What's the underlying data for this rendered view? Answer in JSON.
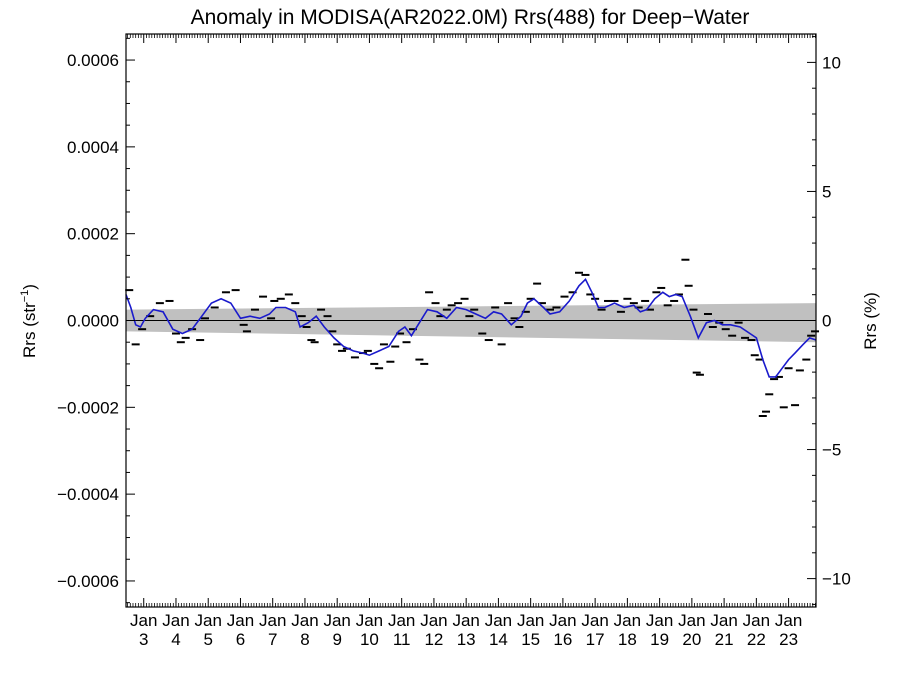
{
  "chart_data": {
    "type": "line",
    "title": "Anomaly in MODISA(AR2022.0M) Rrs(488) for Deep−Water",
    "ylabel_main": "Rrs (str",
    "ylabel_sup": "−1",
    "ylabel_close": ")",
    "ylabel_right": "Rrs (%)",
    "ylim": [
      -0.00066,
      0.00066
    ],
    "ylim_right": [
      -11.1,
      11.1
    ],
    "xlim": [
      2002.45,
      2023.85
    ],
    "yticks": [
      {
        "value": 0.0006,
        "label": "0.0006"
      },
      {
        "value": 0.0004,
        "label": "0.0004"
      },
      {
        "value": 0.0002,
        "label": "0.0002"
      },
      {
        "value": 0.0,
        "label": "0.0000"
      },
      {
        "value": -0.0002,
        "label": "−0.0002"
      },
      {
        "value": -0.0004,
        "label": "−0.0004"
      },
      {
        "value": -0.0006,
        "label": "−0.0006"
      }
    ],
    "yticks_right": [
      {
        "value": 10,
        "label": "10"
      },
      {
        "value": 5,
        "label": "5"
      },
      {
        "value": 0,
        "label": "0"
      },
      {
        "value": -5,
        "label": "−5"
      },
      {
        "value": -10,
        "label": "−10"
      }
    ],
    "xticks": [
      {
        "value": 2003,
        "month": "Jan",
        "year": "3"
      },
      {
        "value": 2004,
        "month": "Jan",
        "year": "4"
      },
      {
        "value": 2005,
        "month": "Jan",
        "year": "5"
      },
      {
        "value": 2006,
        "month": "Jan",
        "year": "6"
      },
      {
        "value": 2007,
        "month": "Jan",
        "year": "7"
      },
      {
        "value": 2008,
        "month": "Jan",
        "year": "8"
      },
      {
        "value": 2009,
        "month": "Jan",
        "year": "9"
      },
      {
        "value": 2010,
        "month": "Jan",
        "year": "10"
      },
      {
        "value": 2011,
        "month": "Jan",
        "year": "11"
      },
      {
        "value": 2012,
        "month": "Jan",
        "year": "12"
      },
      {
        "value": 2013,
        "month": "Jan",
        "year": "13"
      },
      {
        "value": 2014,
        "month": "Jan",
        "year": "14"
      },
      {
        "value": 2015,
        "month": "Jan",
        "year": "15"
      },
      {
        "value": 2016,
        "month": "Jan",
        "year": "16"
      },
      {
        "value": 2017,
        "month": "Jan",
        "year": "17"
      },
      {
        "value": 2018,
        "month": "Jan",
        "year": "18"
      },
      {
        "value": 2019,
        "month": "Jan",
        "year": "19"
      },
      {
        "value": 2020,
        "month": "Jan",
        "year": "20"
      },
      {
        "value": 2021,
        "month": "Jan",
        "year": "21"
      },
      {
        "value": 2022,
        "month": "Jan",
        "year": "22"
      },
      {
        "value": 2023,
        "month": "Jan",
        "year": "23"
      }
    ],
    "band": {
      "color": "#c0c0c0",
      "upper": [
        [
          2002.45,
          2.5e-05
        ],
        [
          2023.85,
          4e-05
        ]
      ],
      "lower": [
        [
          2002.45,
          -2.5e-05
        ],
        [
          2023.85,
          -5e-05
        ]
      ]
    },
    "smooth_line": {
      "color": "#1a1acc",
      "points": [
        [
          2002.45,
          6e-05
        ],
        [
          2002.6,
          3e-05
        ],
        [
          2002.75,
          -1e-05
        ],
        [
          2002.9,
          -1.5e-05
        ],
        [
          2003.05,
          5e-06
        ],
        [
          2003.3,
          2.5e-05
        ],
        [
          2003.6,
          2e-05
        ],
        [
          2003.9,
          -2e-05
        ],
        [
          2004.2,
          -3e-05
        ],
        [
          2004.5,
          -2e-05
        ],
        [
          2004.8,
          1e-05
        ],
        [
          2005.1,
          4e-05
        ],
        [
          2005.4,
          5e-05
        ],
        [
          2005.7,
          4e-05
        ],
        [
          2006.0,
          5e-06
        ],
        [
          2006.3,
          1e-05
        ],
        [
          2006.6,
          5e-06
        ],
        [
          2006.9,
          1.5e-05
        ],
        [
          2007.1,
          3e-05
        ],
        [
          2007.4,
          3e-05
        ],
        [
          2007.7,
          2e-05
        ],
        [
          2007.85,
          -1.5e-05
        ],
        [
          2008.1,
          -5e-06
        ],
        [
          2008.35,
          1e-05
        ],
        [
          2008.6,
          -1.5e-05
        ],
        [
          2008.9,
          -4e-05
        ],
        [
          2009.2,
          -6e-05
        ],
        [
          2009.5,
          -7e-05
        ],
        [
          2009.8,
          -7.5e-05
        ],
        [
          2010.0,
          -8e-05
        ],
        [
          2010.3,
          -7e-05
        ],
        [
          2010.6,
          -6e-05
        ],
        [
          2010.9,
          -2.5e-05
        ],
        [
          2011.1,
          -1.5e-05
        ],
        [
          2011.3,
          -3.5e-05
        ],
        [
          2011.55,
          -5e-06
        ],
        [
          2011.8,
          2.5e-05
        ],
        [
          2012.1,
          2e-05
        ],
        [
          2012.4,
          5e-06
        ],
        [
          2012.7,
          3e-05
        ],
        [
          2013.0,
          2.5e-05
        ],
        [
          2013.3,
          1.5e-05
        ],
        [
          2013.6,
          5e-06
        ],
        [
          2013.85,
          2e-05
        ],
        [
          2014.1,
          1.5e-05
        ],
        [
          2014.4,
          -1e-05
        ],
        [
          2014.7,
          1e-05
        ],
        [
          2014.9,
          4e-05
        ],
        [
          2015.1,
          5e-05
        ],
        [
          2015.4,
          3e-05
        ],
        [
          2015.6,
          1.5e-05
        ],
        [
          2015.9,
          2e-05
        ],
        [
          2016.2,
          4.5e-05
        ],
        [
          2016.5,
          8e-05
        ],
        [
          2016.7,
          9.5e-05
        ],
        [
          2016.9,
          6.5e-05
        ],
        [
          2017.1,
          3e-05
        ],
        [
          2017.3,
          3e-05
        ],
        [
          2017.6,
          4e-05
        ],
        [
          2017.9,
          3e-05
        ],
        [
          2018.2,
          3.5e-05
        ],
        [
          2018.4,
          2e-05
        ],
        [
          2018.6,
          2.5e-05
        ],
        [
          2018.85,
          5e-05
        ],
        [
          2019.1,
          6.5e-05
        ],
        [
          2019.3,
          5.5e-05
        ],
        [
          2019.5,
          6e-05
        ],
        [
          2019.7,
          5.5e-05
        ],
        [
          2019.95,
          1e-05
        ],
        [
          2020.2,
          -4e-05
        ],
        [
          2020.45,
          -5e-06
        ],
        [
          2020.7,
          0.0
        ],
        [
          2020.95,
          -1e-05
        ],
        [
          2021.2,
          -1e-05
        ],
        [
          2021.5,
          -1.5e-05
        ],
        [
          2021.8,
          -3e-05
        ],
        [
          2022.0,
          -4e-05
        ],
        [
          2022.2,
          -9e-05
        ],
        [
          2022.4,
          -0.00013
        ],
        [
          2022.6,
          -0.00013
        ],
        [
          2022.8,
          -0.00011
        ],
        [
          2023.0,
          -9e-05
        ],
        [
          2023.2,
          -7.5e-05
        ],
        [
          2023.45,
          -5.5e-05
        ],
        [
          2023.65,
          -4e-05
        ],
        [
          2023.85,
          -4.5e-05
        ]
      ]
    },
    "scatter_dashes": [
      [
        2002.55,
        7e-05
      ],
      [
        2002.75,
        -5.5e-05
      ],
      [
        2002.95,
        -2e-05
      ],
      [
        2003.2,
        1e-05
      ],
      [
        2003.5,
        4e-05
      ],
      [
        2003.8,
        4.5e-05
      ],
      [
        2004.0,
        -3e-05
      ],
      [
        2004.15,
        -5e-05
      ],
      [
        2004.3,
        -4e-05
      ],
      [
        2004.5,
        -2e-05
      ],
      [
        2004.75,
        -4.5e-05
      ],
      [
        2004.9,
        5e-06
      ],
      [
        2005.2,
        3e-05
      ],
      [
        2005.55,
        6.5e-05
      ],
      [
        2005.85,
        7e-05
      ],
      [
        2006.1,
        -1e-05
      ],
      [
        2006.2,
        -2.5e-05
      ],
      [
        2006.45,
        2.5e-05
      ],
      [
        2006.7,
        5.5e-05
      ],
      [
        2006.95,
        5e-06
      ],
      [
        2007.05,
        4.5e-05
      ],
      [
        2007.25,
        5e-05
      ],
      [
        2007.5,
        6e-05
      ],
      [
        2007.7,
        4e-05
      ],
      [
        2007.9,
        1e-05
      ],
      [
        2008.05,
        -1.5e-05
      ],
      [
        2008.2,
        -4.5e-05
      ],
      [
        2008.3,
        -5e-05
      ],
      [
        2008.5,
        2.5e-05
      ],
      [
        2008.7,
        1e-05
      ],
      [
        2008.85,
        -2.5e-05
      ],
      [
        2009.0,
        -5.5e-05
      ],
      [
        2009.15,
        -7e-05
      ],
      [
        2009.3,
        -6.5e-05
      ],
      [
        2009.55,
        -8.5e-05
      ],
      [
        2009.8,
        -7.5e-05
      ],
      [
        2009.95,
        -7e-05
      ],
      [
        2010.15,
        -0.0001
      ],
      [
        2010.3,
        -0.00011
      ],
      [
        2010.45,
        -5.5e-05
      ],
      [
        2010.65,
        -9.5e-05
      ],
      [
        2010.8,
        -6e-05
      ],
      [
        2010.95,
        -3e-05
      ],
      [
        2011.15,
        -5e-05
      ],
      [
        2011.35,
        -2e-05
      ],
      [
        2011.55,
        -9e-05
      ],
      [
        2011.7,
        -0.0001
      ],
      [
        2011.85,
        6.5e-05
      ],
      [
        2012.05,
        4e-05
      ],
      [
        2012.2,
        1e-05
      ],
      [
        2012.4,
        2.5e-05
      ],
      [
        2012.55,
        3.5e-05
      ],
      [
        2012.75,
        4e-05
      ],
      [
        2012.95,
        5e-05
      ],
      [
        2013.1,
        1e-05
      ],
      [
        2013.25,
        2.5e-05
      ],
      [
        2013.5,
        -3e-05
      ],
      [
        2013.7,
        -4.5e-05
      ],
      [
        2013.9,
        3e-05
      ],
      [
        2014.1,
        -5.5e-05
      ],
      [
        2014.3,
        4e-05
      ],
      [
        2014.5,
        5e-06
      ],
      [
        2014.65,
        -1.5e-05
      ],
      [
        2014.85,
        2e-05
      ],
      [
        2015.0,
        5e-05
      ],
      [
        2015.2,
        8.5e-05
      ],
      [
        2015.35,
        4e-05
      ],
      [
        2015.6,
        2.5e-05
      ],
      [
        2015.8,
        3e-05
      ],
      [
        2016.05,
        5.5e-05
      ],
      [
        2016.3,
        6.5e-05
      ],
      [
        2016.5,
        0.00011
      ],
      [
        2016.7,
        0.000105
      ],
      [
        2016.85,
        6e-05
      ],
      [
        2017.0,
        5e-05
      ],
      [
        2017.2,
        2.5e-05
      ],
      [
        2017.4,
        4.5e-05
      ],
      [
        2017.6,
        4.5e-05
      ],
      [
        2017.8,
        2e-05
      ],
      [
        2018.0,
        5e-05
      ],
      [
        2018.2,
        4e-05
      ],
      [
        2018.35,
        3e-05
      ],
      [
        2018.55,
        4.5e-05
      ],
      [
        2018.7,
        2.5e-05
      ],
      [
        2018.9,
        6.5e-05
      ],
      [
        2019.05,
        7.5e-05
      ],
      [
        2019.25,
        3.5e-05
      ],
      [
        2019.45,
        4.5e-05
      ],
      [
        2019.6,
        6e-05
      ],
      [
        2019.8,
        0.00014
      ],
      [
        2019.9,
        8e-05
      ],
      [
        2020.05,
        2.5e-05
      ],
      [
        2020.15,
        -0.00012
      ],
      [
        2020.25,
        -0.000125
      ],
      [
        2020.5,
        1.5e-05
      ],
      [
        2020.65,
        -1.5e-05
      ],
      [
        2020.85,
        -5e-06
      ],
      [
        2021.05,
        -2e-05
      ],
      [
        2021.25,
        -3.5e-05
      ],
      [
        2021.45,
        -5e-06
      ],
      [
        2021.65,
        -4e-05
      ],
      [
        2021.85,
        -4.5e-05
      ],
      [
        2021.95,
        -8e-05
      ],
      [
        2022.1,
        -9e-05
      ],
      [
        2022.2,
        -0.00022
      ],
      [
        2022.3,
        -0.00021
      ],
      [
        2022.4,
        -0.00017
      ],
      [
        2022.55,
        -0.000135
      ],
      [
        2022.7,
        -0.00013
      ],
      [
        2022.85,
        -0.0002
      ],
      [
        2023.0,
        -0.00011
      ],
      [
        2023.2,
        -0.000195
      ],
      [
        2023.35,
        -0.000115
      ],
      [
        2023.55,
        -9e-05
      ],
      [
        2023.7,
        -3.5e-05
      ],
      [
        2023.82,
        -2.5e-05
      ]
    ]
  }
}
